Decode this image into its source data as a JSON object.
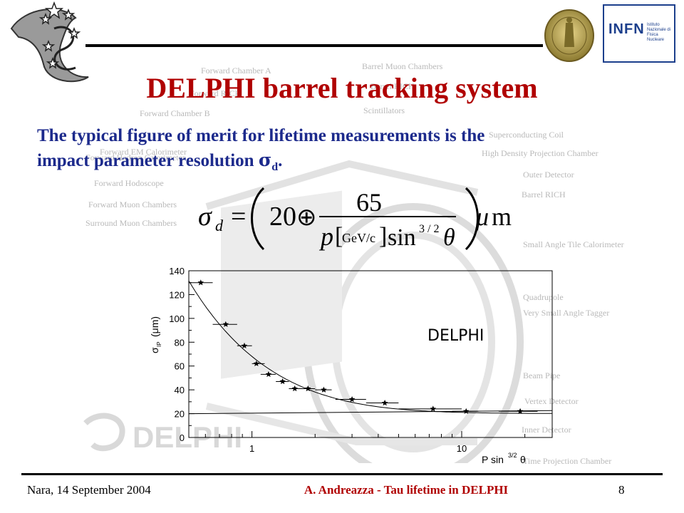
{
  "slide": {
    "title": "DELPHI barrel tracking system",
    "body_line1": "The typical figure of merit for lifetime measurements is the",
    "body_line2_prefix": "impact parameter resolution ",
    "body_sigma": "σ",
    "body_sub": "d",
    "body_end": "."
  },
  "formula": {
    "lhs_sigma": "σ",
    "lhs_sub": "d",
    "equals": "=",
    "term1": "20",
    "oplus": "⊕",
    "numerator": "65",
    "denom_p": "p",
    "denom_unit": "GeV/c",
    "denom_sin": "sin",
    "denom_exp": "3 / 2",
    "denom_theta": "θ",
    "unit_mu": "μ",
    "unit_m": "m"
  },
  "background_labels": [
    "Forward Chamber A",
    "Barrel Muon Chambers",
    "Forward RICH",
    "Barrel RICH",
    "Forward Chamber B",
    "Scintillators",
    "Forward EM Calorimeter",
    "Superconducting Coil",
    "Forward Hadron Calorimeter",
    "High Density Projection Chamber",
    "Forward Hodoscope",
    "Outer Detector",
    "Forward Muon Chambers",
    "Barrel RICH",
    "Surround Muon Chambers",
    "Small Angle Tile Calorimeter",
    "Quadrupole",
    "Very Small Angle Tagger",
    "Beam Pipe",
    "Vertex Detector",
    "Inner Detector",
    "Time Projection Chamber"
  ],
  "watermark_text": "DELPHI",
  "logos": {
    "infn_mark": "INFN",
    "infn_sub": "Istituto Nazionale di Fisica Nucleare"
  },
  "footer": {
    "left": "Nara, 14 September 2004",
    "center": "A. Andreazza - Tau lifetime in DELPHI",
    "page": "8"
  },
  "chart_data": {
    "type": "scatter",
    "title": "",
    "inset_label": "DELPHI",
    "xlabel": "P sin",
    "xlabel_exp": "3/2",
    "xlabel_theta": "θ",
    "ylabel": "σ",
    "ylabel_sub": "IP",
    "ylabel_unit": "(μm)",
    "x_scale": "log",
    "xlim": [
      0.5,
      27
    ],
    "ylim": [
      0,
      140
    ],
    "y_ticks": [
      0,
      20,
      40,
      60,
      80,
      100,
      120,
      140
    ],
    "x_tick_labels": [
      {
        "value": 1,
        "label": "1"
      },
      {
        "value": 10,
        "label": "10"
      }
    ],
    "series": [
      {
        "marker": "star",
        "points": [
          {
            "x": 0.57,
            "y": 130,
            "xerr": [
              0.5,
              0.65
            ]
          },
          {
            "x": 0.75,
            "y": 95,
            "xerr": [
              0.65,
              0.85
            ]
          },
          {
            "x": 0.92,
            "y": 77,
            "xerr": [
              0.85,
              1.0
            ]
          },
          {
            "x": 1.05,
            "y": 62,
            "xerr": [
              1.0,
              1.15
            ]
          },
          {
            "x": 1.2,
            "y": 53,
            "xerr": [
              1.1,
              1.3
            ]
          },
          {
            "x": 1.4,
            "y": 47,
            "xerr": [
              1.3,
              1.5
            ]
          },
          {
            "x": 1.6,
            "y": 41,
            "xerr": [
              1.5,
              1.7
            ]
          },
          {
            "x": 1.85,
            "y": 41,
            "xerr": [
              1.7,
              2.0
            ]
          },
          {
            "x": 2.2,
            "y": 40,
            "xerr": [
              2.0,
              2.4
            ]
          },
          {
            "x": 3.0,
            "y": 32,
            "xerr": [
              2.5,
              3.5
            ]
          },
          {
            "x": 4.3,
            "y": 29,
            "xerr": [
              3.5,
              5.0
            ]
          },
          {
            "x": 7.3,
            "y": 24,
            "xerr": [
              5.0,
              10.0
            ]
          },
          {
            "x": 10.5,
            "y": 22,
            "xerr": [
              9.0,
              12.0
            ]
          },
          {
            "x": 19.0,
            "y": 22,
            "xerr": [
              15.0,
              23.0
            ]
          }
        ]
      }
    ],
    "curves": [
      {
        "kind": "fit",
        "function": "sqrt(20^2 + (65/x)^2)"
      },
      {
        "kind": "asymptote",
        "y": 20
      }
    ],
    "grid": false,
    "legend": "none"
  }
}
